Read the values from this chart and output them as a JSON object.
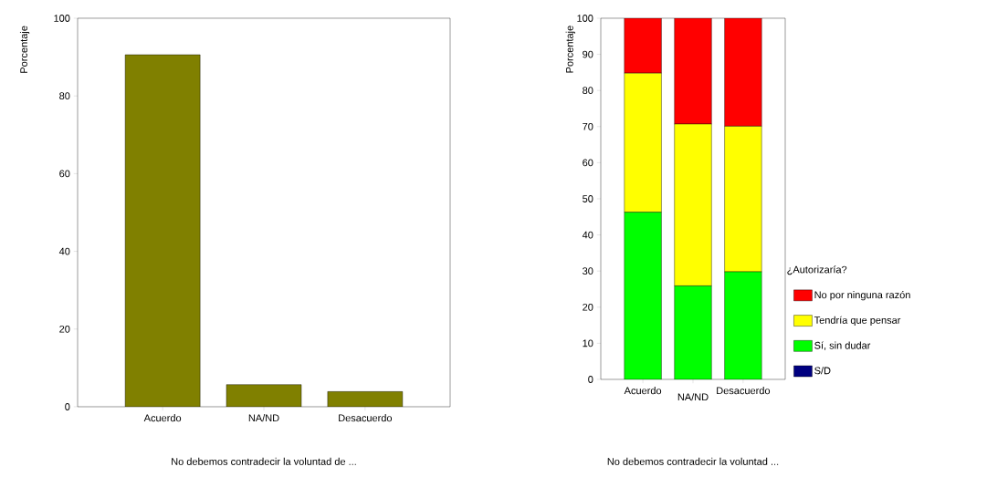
{
  "chart_data": [
    {
      "type": "bar",
      "categories": [
        "Acuerdo",
        "NA/ND",
        "Desacuerdo"
      ],
      "values": [
        90.6,
        5.7,
        3.9
      ],
      "color": "#808000",
      "ylim": [
        0,
        100
      ],
      "yticks": [
        0,
        20,
        40,
        60,
        80,
        100
      ],
      "ylabel": "Porcentaje",
      "xlabel": "No debemos contradecir la voluntad de ..."
    },
    {
      "type": "bar",
      "stacked": true,
      "categories": [
        "Acuerdo",
        "NA/ND",
        "Desacuerdo"
      ],
      "series": [
        {
          "name": "S/D",
          "color": "#000080",
          "values": [
            0,
            0,
            0
          ]
        },
        {
          "name": "Sí, sin dudar",
          "color": "#00ff00",
          "values": [
            46.3,
            25.9,
            29.8
          ]
        },
        {
          "name": "Tendría que pensar",
          "color": "#ffff00",
          "values": [
            38.5,
            44.8,
            40.3
          ]
        },
        {
          "name": "No por ninguna razón",
          "color": "#ff0000",
          "values": [
            15.2,
            29.3,
            29.9
          ]
        }
      ],
      "ylim": [
        0,
        100
      ],
      "yticks": [
        0,
        10,
        20,
        30,
        40,
        50,
        60,
        70,
        80,
        90,
        100
      ],
      "ylabel": "Porcentaje",
      "xlabel": "No debemos contradecir la voluntad ...",
      "legend": "right",
      "legend_title": "¿Autorizaría?"
    }
  ]
}
